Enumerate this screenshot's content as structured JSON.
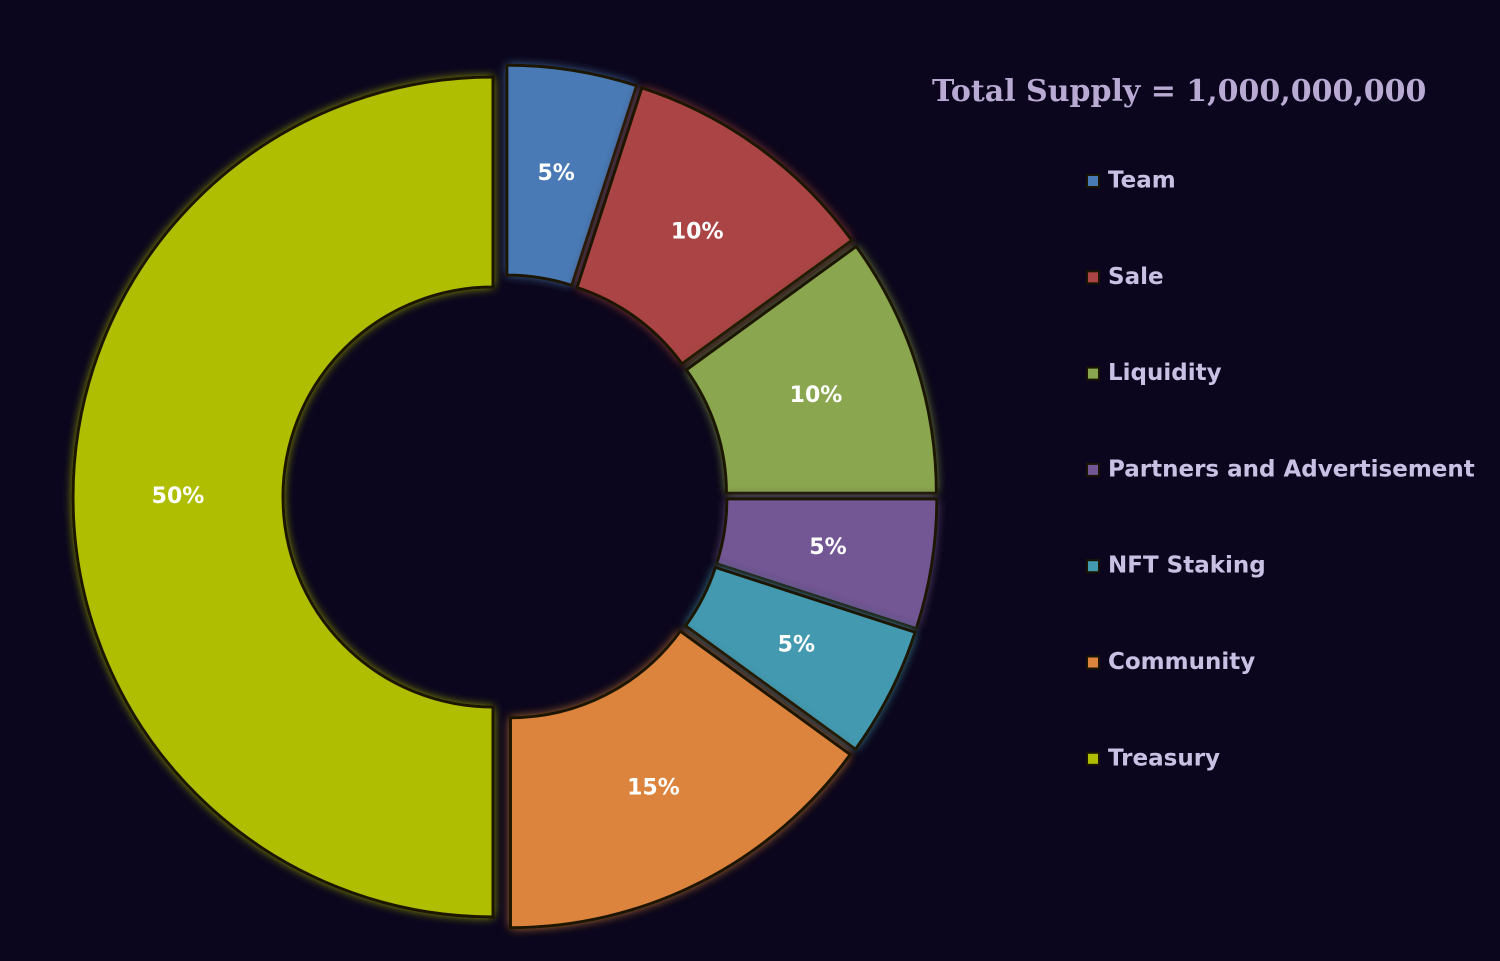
{
  "chart_data": {
    "type": "donut",
    "title": "Total Supply = 1,000,000,000",
    "categories": [
      "Team",
      "Sale",
      "Liquidity",
      "Partners and Advertisement",
      "NFT Staking",
      "Community",
      "Treasury"
    ],
    "values": [
      5,
      10,
      10,
      5,
      5,
      15,
      50
    ],
    "value_labels": [
      "5%",
      "10%",
      "10%",
      "5%",
      "5%",
      "15%",
      "50%"
    ],
    "colors": [
      "#4a7ab5",
      "#ab4545",
      "#8aa64f",
      "#735694",
      "#4399b0",
      "#dc843e",
      "#afbe04"
    ],
    "legend": "right"
  }
}
